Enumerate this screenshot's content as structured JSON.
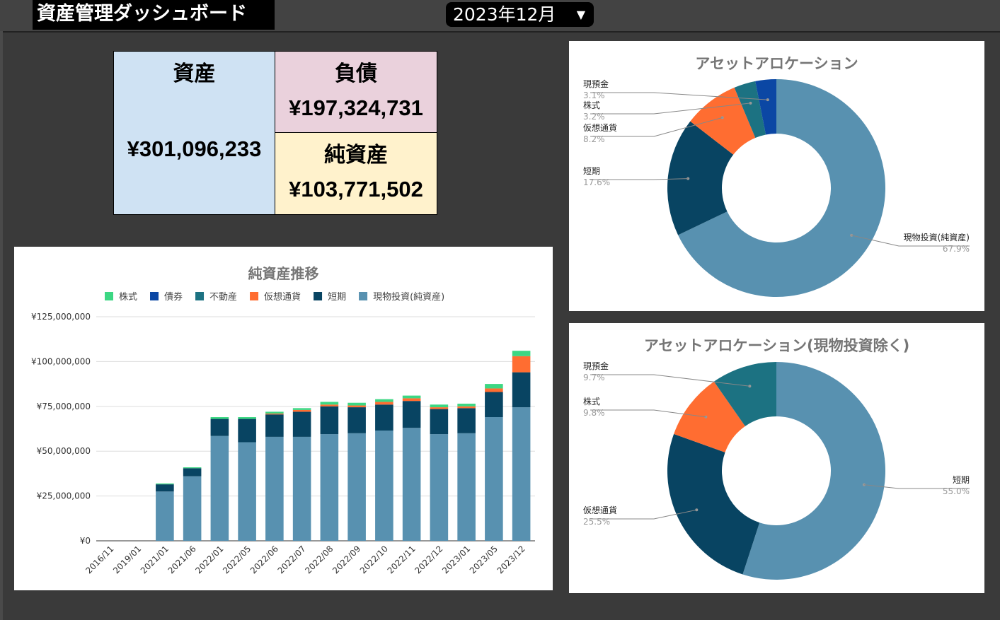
{
  "header": {
    "title": "資産管理ダッシュボード",
    "selected_month": "2023年12月"
  },
  "summary": {
    "assets_label": "資産",
    "assets_value": "¥301,096,233",
    "liabilities_label": "負債",
    "liabilities_value": "¥197,324,731",
    "net_assets_label": "純資産",
    "net_assets_value": "¥103,771,502",
    "colors": {
      "assets": "#cfe2f3",
      "liabilities": "#ead1dc",
      "net_assets": "#fff2cc"
    }
  },
  "chart_data": [
    {
      "type": "bar",
      "stacked": true,
      "title": "純資産推移",
      "legend_position": "top",
      "grid": true,
      "ylim": [
        0,
        125000000
      ],
      "yticks": [
        "¥0",
        "¥25,000,000",
        "¥50,000,000",
        "¥75,000,000",
        "¥100,000,000",
        "¥125,000,000"
      ],
      "categories": [
        "2016/11",
        "2019/01",
        "2021/01",
        "2021/06",
        "2022/01",
        "2022/05",
        "2022/06",
        "2022/07",
        "2022/08",
        "2022/09",
        "2022/10",
        "2022/11",
        "2022/12",
        "2023/01",
        "2023/05",
        "2023/12"
      ],
      "series": [
        {
          "name": "現物投資(純資産)",
          "color": "#5891b0",
          "values": [
            0,
            0,
            27500000,
            36000000,
            58500000,
            55000000,
            58000000,
            58000000,
            59500000,
            60000000,
            61500000,
            63000000,
            59500000,
            60000000,
            69000000,
            74500000
          ]
        },
        {
          "name": "短期",
          "color": "#084462",
          "values": [
            0,
            0,
            4000000,
            4500000,
            9500000,
            13000000,
            12500000,
            14000000,
            15500000,
            14500000,
            14500000,
            15000000,
            14000000,
            14000000,
            14000000,
            19500000
          ]
        },
        {
          "name": "仮想通貨",
          "color": "#ff6d31",
          "values": [
            0,
            0,
            0,
            0,
            0,
            0,
            500000,
            1000000,
            1000000,
            1000000,
            1500000,
            1500000,
            1000000,
            1000000,
            2000000,
            9000000
          ]
        },
        {
          "name": "不動産",
          "color": "#1c7282",
          "values": [
            0,
            0,
            0,
            0,
            0,
            0,
            0,
            0,
            0,
            0,
            0,
            0,
            0,
            0,
            0,
            0
          ]
        },
        {
          "name": "債券",
          "color": "#0b47a4",
          "values": [
            0,
            0,
            0,
            0,
            0,
            0,
            0,
            0,
            0,
            0,
            0,
            0,
            0,
            0,
            0,
            0
          ]
        },
        {
          "name": "株式",
          "color": "#3cd783",
          "values": [
            0,
            0,
            500000,
            500000,
            1000000,
            1000000,
            1000000,
            1000000,
            1500000,
            1500000,
            1500000,
            1500000,
            1500000,
            1500000,
            2500000,
            3000000
          ]
        }
      ],
      "legend_order": [
        "株式",
        "債券",
        "不動産",
        "仮想通貨",
        "短期",
        "現物投資(純資産)"
      ]
    },
    {
      "type": "pie",
      "donut": true,
      "title": "アセットアロケーション",
      "slices": [
        {
          "label": "現物投資(純資産)",
          "value": 67.9,
          "pct": "67.9%",
          "color": "#5891b0"
        },
        {
          "label": "短期",
          "value": 17.6,
          "pct": "17.6%",
          "color": "#084462"
        },
        {
          "label": "仮想通貨",
          "value": 8.2,
          "pct": "8.2%",
          "color": "#ff6d31"
        },
        {
          "label": "株式",
          "value": 3.2,
          "pct": "3.2%",
          "color": "#1c7282"
        },
        {
          "label": "現預金",
          "value": 3.1,
          "pct": "3.1%",
          "color": "#0b47a4"
        }
      ]
    },
    {
      "type": "pie",
      "donut": true,
      "title": "アセットアロケーション(現物投資除く)",
      "slices": [
        {
          "label": "短期",
          "value": 55.0,
          "pct": "55.0%",
          "color": "#5891b0"
        },
        {
          "label": "仮想通貨",
          "value": 25.5,
          "pct": "25.5%",
          "color": "#084462"
        },
        {
          "label": "株式",
          "value": 9.8,
          "pct": "9.8%",
          "color": "#ff6d31"
        },
        {
          "label": "現預金",
          "value": 9.7,
          "pct": "9.7%",
          "color": "#1c7282"
        }
      ]
    }
  ]
}
